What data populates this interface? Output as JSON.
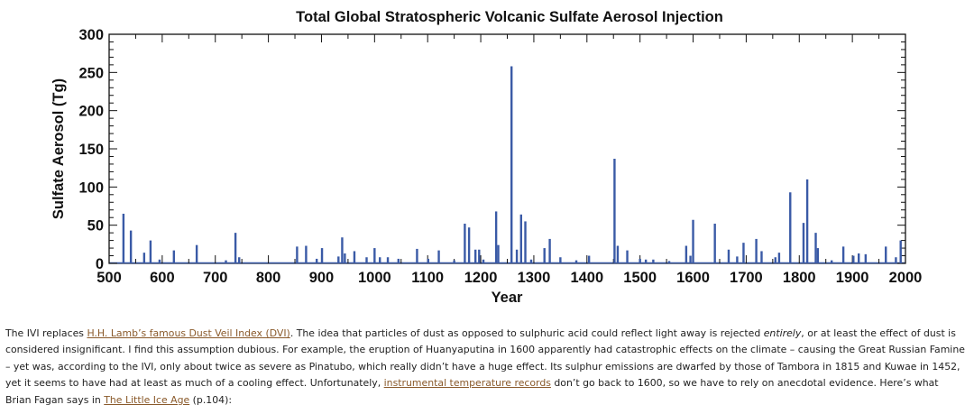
{
  "chart_data": {
    "type": "bar",
    "title": "Total Global Stratospheric Volcanic Sulfate Aerosol Injection",
    "xlabel": "Year",
    "ylabel": "Sulfate Aerosol (Tg)",
    "xlim": [
      500,
      2000
    ],
    "ylim": [
      0,
      300
    ],
    "grid": false,
    "legend": "none",
    "x_ticks": [
      "500",
      "600",
      "700",
      "800",
      "900",
      "1000",
      "1100",
      "1200",
      "1300",
      "1400",
      "1500",
      "1600",
      "1700",
      "1800",
      "1900",
      "2000"
    ],
    "y_ticks": [
      "0",
      "50",
      "100",
      "150",
      "200",
      "250",
      "300"
    ],
    "color": "#3a5aa6",
    "series": [
      {
        "values": [
          {
            "x": 527,
            "y": 65
          },
          {
            "x": 541,
            "y": 43
          },
          {
            "x": 566,
            "y": 14
          },
          {
            "x": 578,
            "y": 30
          },
          {
            "x": 595,
            "y": 5
          },
          {
            "x": 622,
            "y": 17
          },
          {
            "x": 665,
            "y": 24
          },
          {
            "x": 720,
            "y": 4
          },
          {
            "x": 738,
            "y": 40
          },
          {
            "x": 745,
            "y": 8
          },
          {
            "x": 854,
            "y": 22
          },
          {
            "x": 871,
            "y": 23
          },
          {
            "x": 891,
            "y": 6
          },
          {
            "x": 901,
            "y": 20
          },
          {
            "x": 932,
            "y": 9
          },
          {
            "x": 939,
            "y": 34
          },
          {
            "x": 944,
            "y": 13
          },
          {
            "x": 962,
            "y": 16
          },
          {
            "x": 985,
            "y": 8
          },
          {
            "x": 1000,
            "y": 20
          },
          {
            "x": 1010,
            "y": 8
          },
          {
            "x": 1025,
            "y": 8
          },
          {
            "x": 1045,
            "y": 6
          },
          {
            "x": 1080,
            "y": 19
          },
          {
            "x": 1101,
            "y": 6
          },
          {
            "x": 1121,
            "y": 17
          },
          {
            "x": 1150,
            "y": 4
          },
          {
            "x": 1170,
            "y": 52
          },
          {
            "x": 1178,
            "y": 47
          },
          {
            "x": 1190,
            "y": 18
          },
          {
            "x": 1197,
            "y": 18
          },
          {
            "x": 1205,
            "y": 5
          },
          {
            "x": 1229,
            "y": 68
          },
          {
            "x": 1233,
            "y": 24
          },
          {
            "x": 1258,
            "y": 258
          },
          {
            "x": 1268,
            "y": 18
          },
          {
            "x": 1276,
            "y": 64
          },
          {
            "x": 1284,
            "y": 55
          },
          {
            "x": 1295,
            "y": 5
          },
          {
            "x": 1320,
            "y": 20
          },
          {
            "x": 1330,
            "y": 32
          },
          {
            "x": 1350,
            "y": 8
          },
          {
            "x": 1380,
            "y": 4
          },
          {
            "x": 1404,
            "y": 10
          },
          {
            "x": 1452,
            "y": 137
          },
          {
            "x": 1458,
            "y": 23
          },
          {
            "x": 1476,
            "y": 17
          },
          {
            "x": 1500,
            "y": 6
          },
          {
            "x": 1511,
            "y": 5
          },
          {
            "x": 1525,
            "y": 5
          },
          {
            "x": 1555,
            "y": 3
          },
          {
            "x": 1587,
            "y": 23
          },
          {
            "x": 1595,
            "y": 10
          },
          {
            "x": 1600,
            "y": 57
          },
          {
            "x": 1641,
            "y": 52
          },
          {
            "x": 1667,
            "y": 18
          },
          {
            "x": 1683,
            "y": 9
          },
          {
            "x": 1695,
            "y": 27
          },
          {
            "x": 1719,
            "y": 32
          },
          {
            "x": 1729,
            "y": 16
          },
          {
            "x": 1755,
            "y": 8
          },
          {
            "x": 1762,
            "y": 14
          },
          {
            "x": 1783,
            "y": 93
          },
          {
            "x": 1808,
            "y": 53
          },
          {
            "x": 1815,
            "y": 110
          },
          {
            "x": 1831,
            "y": 40
          },
          {
            "x": 1835,
            "y": 20
          },
          {
            "x": 1861,
            "y": 4
          },
          {
            "x": 1883,
            "y": 22
          },
          {
            "x": 1902,
            "y": 10
          },
          {
            "x": 1912,
            "y": 13
          },
          {
            "x": 1925,
            "y": 12
          },
          {
            "x": 1963,
            "y": 22
          },
          {
            "x": 1982,
            "y": 8
          },
          {
            "x": 1991,
            "y": 30
          }
        ]
      }
    ]
  },
  "article": {
    "p1": "The IVI replaces ",
    "link_dvi": "H.H. Lamb’s famous Dust Veil Index (DVI)",
    "p2": ". The idea that particles of dust as opposed to sulphuric acid could reflect light away is rejected ",
    "em_entirely": "entirely",
    "p3": ", or at least the effect of dust is considered insignificant. I find this assumption dubious. For example, the eruption of Huanyaputina in 1600 apparently had catastrophic effects on the climate – causing the Great Russian Famine – yet was, according to the IVI, only about twice as severe as Pinatubo, which really didn’t have a huge effect. Its sulphur emissions are dwarfed by those of Tambora in 1815 and Kuwae in 1452, yet it seems to have had at least as much of a cooling effect. Unfortunately, ",
    "link_records": "instrumental temperature records",
    "p4": " don’t go back to 1600, so we have to rely on anecdotal evidence. Here’s what Brian Fagan says in ",
    "link_lia": "The Little Ice Age",
    "p5": " (p.104):"
  }
}
